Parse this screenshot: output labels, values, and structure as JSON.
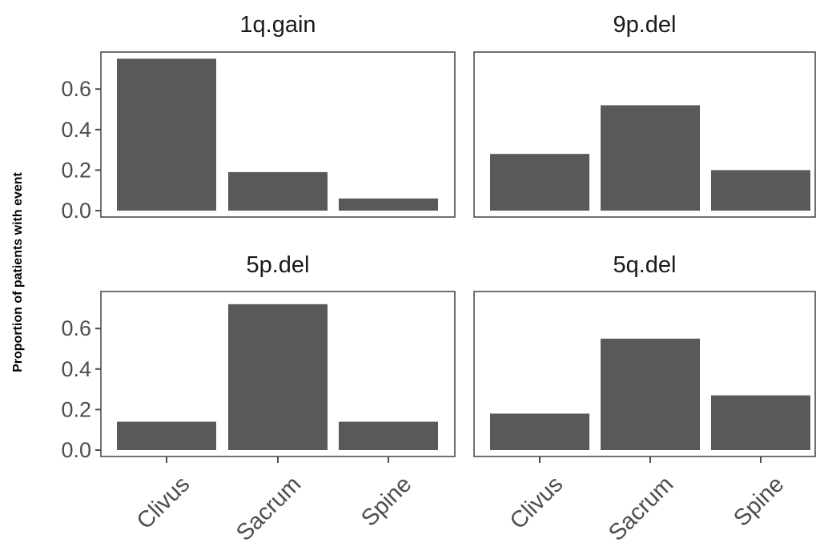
{
  "chart_data": {
    "type": "bar",
    "ylabel": "Proportion of patients with event",
    "xlabel": "",
    "categories": [
      "Clivus",
      "Sacrum",
      "Spine"
    ],
    "ylim": [
      0,
      0.78
    ],
    "yticks": [
      0.0,
      0.2,
      0.4,
      0.6
    ],
    "ytick_labels": [
      "0.0",
      "0.2",
      "0.4",
      "0.6"
    ],
    "grid": false,
    "bar_color": "#595959",
    "panels": [
      {
        "title": "1q.gain",
        "values": [
          0.75,
          0.19,
          0.06
        ]
      },
      {
        "title": "9p.del",
        "values": [
          0.28,
          0.52,
          0.2
        ]
      },
      {
        "title": "5p.del",
        "values": [
          0.14,
          0.72,
          0.14
        ]
      },
      {
        "title": "5q.del",
        "values": [
          0.18,
          0.55,
          0.27
        ]
      }
    ]
  }
}
